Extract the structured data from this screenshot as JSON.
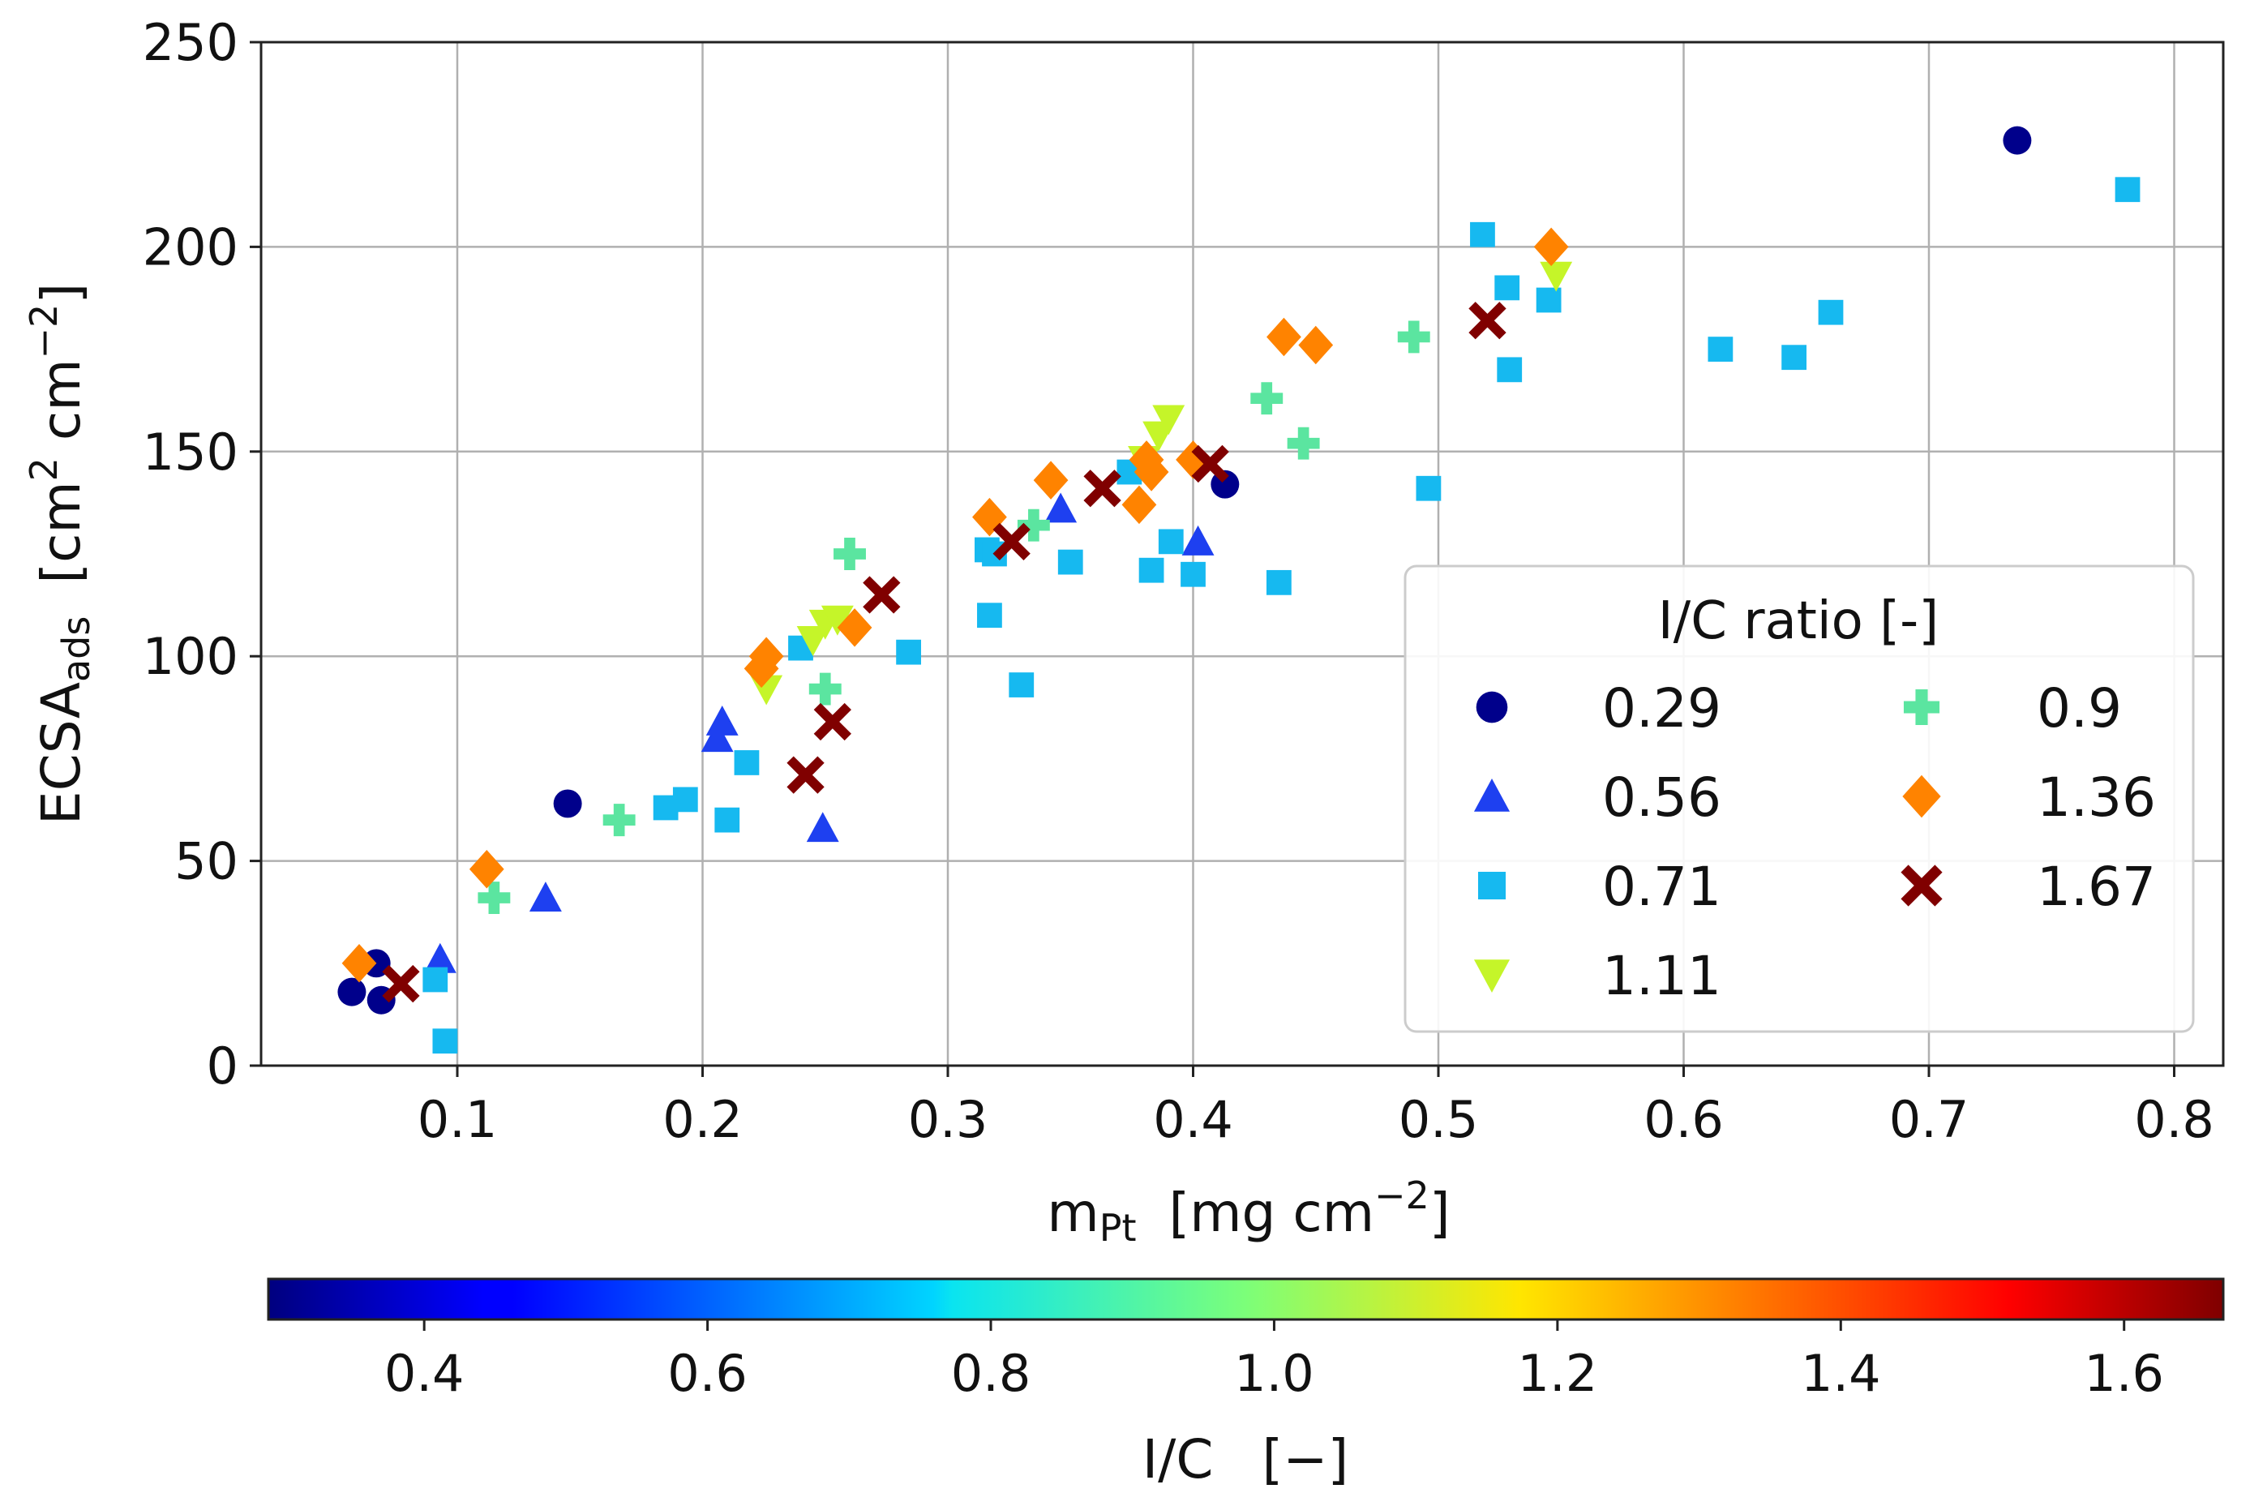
{
  "chart_data": {
    "type": "scatter",
    "title": "",
    "xlabel": {
      "main": "m",
      "sub": "Pt",
      "unit_pre": "[mg cm",
      "unit_sup": "−2",
      "unit_post": "]"
    },
    "ylabel": {
      "main": "ECSA",
      "sub": "ads",
      "unit_pre": "[cm",
      "unit_sup1": "2",
      "unit_mid": " cm",
      "unit_sup2": "−2",
      "unit_post": "]"
    },
    "xlim": [
      0.02,
      0.82
    ],
    "ylim": [
      0,
      250
    ],
    "x_ticks": [
      "0.1",
      "0.2",
      "0.3",
      "0.4",
      "0.5",
      "0.6",
      "0.7",
      "0.8"
    ],
    "y_ticks": [
      "0",
      "50",
      "100",
      "150",
      "200",
      "250"
    ],
    "grid": true,
    "legend": {
      "title": "I/C ratio [-]",
      "position": "lower-right"
    },
    "series": [
      {
        "name": "0.29",
        "marker": "circle",
        "color": "#00008b",
        "x": [
          0.057,
          0.067,
          0.069,
          0.145,
          0.413,
          0.736
        ],
        "y": [
          18,
          25,
          16,
          64,
          142,
          226
        ]
      },
      {
        "name": "0.56",
        "marker": "triangle-up",
        "color": "#1e40f0",
        "x": [
          0.093,
          0.136,
          0.206,
          0.208,
          0.249,
          0.346,
          0.402
        ],
        "y": [
          26,
          41,
          80,
          84,
          58,
          136,
          128
        ]
      },
      {
        "name": "0.71",
        "marker": "square",
        "color": "#16b9f0",
        "x": [
          0.091,
          0.095,
          0.185,
          0.193,
          0.21,
          0.218,
          0.24,
          0.284,
          0.316,
          0.317,
          0.319,
          0.33,
          0.35,
          0.374,
          0.383,
          0.391,
          0.4,
          0.435,
          0.496,
          0.518,
          0.528,
          0.529,
          0.545,
          0.615,
          0.645,
          0.66,
          0.781
        ],
        "y": [
          21,
          6,
          63,
          65,
          60,
          74,
          102,
          101,
          126,
          110,
          125,
          93,
          123,
          145,
          121,
          128,
          120,
          118,
          141,
          203,
          190,
          170,
          187,
          175,
          173,
          184,
          214
        ]
      },
      {
        "name": "1.11",
        "marker": "triangle-down",
        "color": "#c5f529",
        "x": [
          0.226,
          0.245,
          0.25,
          0.255,
          0.38,
          0.386,
          0.39,
          0.548
        ],
        "y": [
          92,
          104,
          108,
          109,
          148,
          154,
          158,
          193
        ]
      },
      {
        "name": "0.9",
        "marker": "plus",
        "color": "#5be5a0",
        "x": [
          0.115,
          0.166,
          0.25,
          0.26,
          0.335,
          0.43,
          0.445,
          0.49
        ],
        "y": [
          41,
          60,
          92,
          125,
          132,
          163,
          152,
          178
        ]
      },
      {
        "name": "1.36",
        "marker": "diamond",
        "color": "#ff8300",
        "x": [
          0.06,
          0.112,
          0.224,
          0.226,
          0.262,
          0.317,
          0.342,
          0.378,
          0.381,
          0.383,
          0.4,
          0.437,
          0.45,
          0.546
        ],
        "y": [
          25,
          48,
          97,
          100,
          107,
          134,
          143,
          137,
          148,
          145,
          148,
          178,
          176,
          200
        ]
      },
      {
        "name": "1.67",
        "marker": "x",
        "color": "#800000",
        "x": [
          0.077,
          0.242,
          0.253,
          0.273,
          0.326,
          0.363,
          0.407,
          0.52
        ],
        "y": [
          20,
          71,
          84,
          115,
          128,
          141,
          147,
          182
        ]
      }
    ],
    "colorbar": {
      "label": "I/C",
      "unit": "[−]",
      "range": [
        0.29,
        1.67
      ],
      "ticks": [
        "0.4",
        "0.6",
        "0.8",
        "1.0",
        "1.2",
        "1.4",
        "1.6"
      ],
      "colormap": "jet"
    }
  }
}
